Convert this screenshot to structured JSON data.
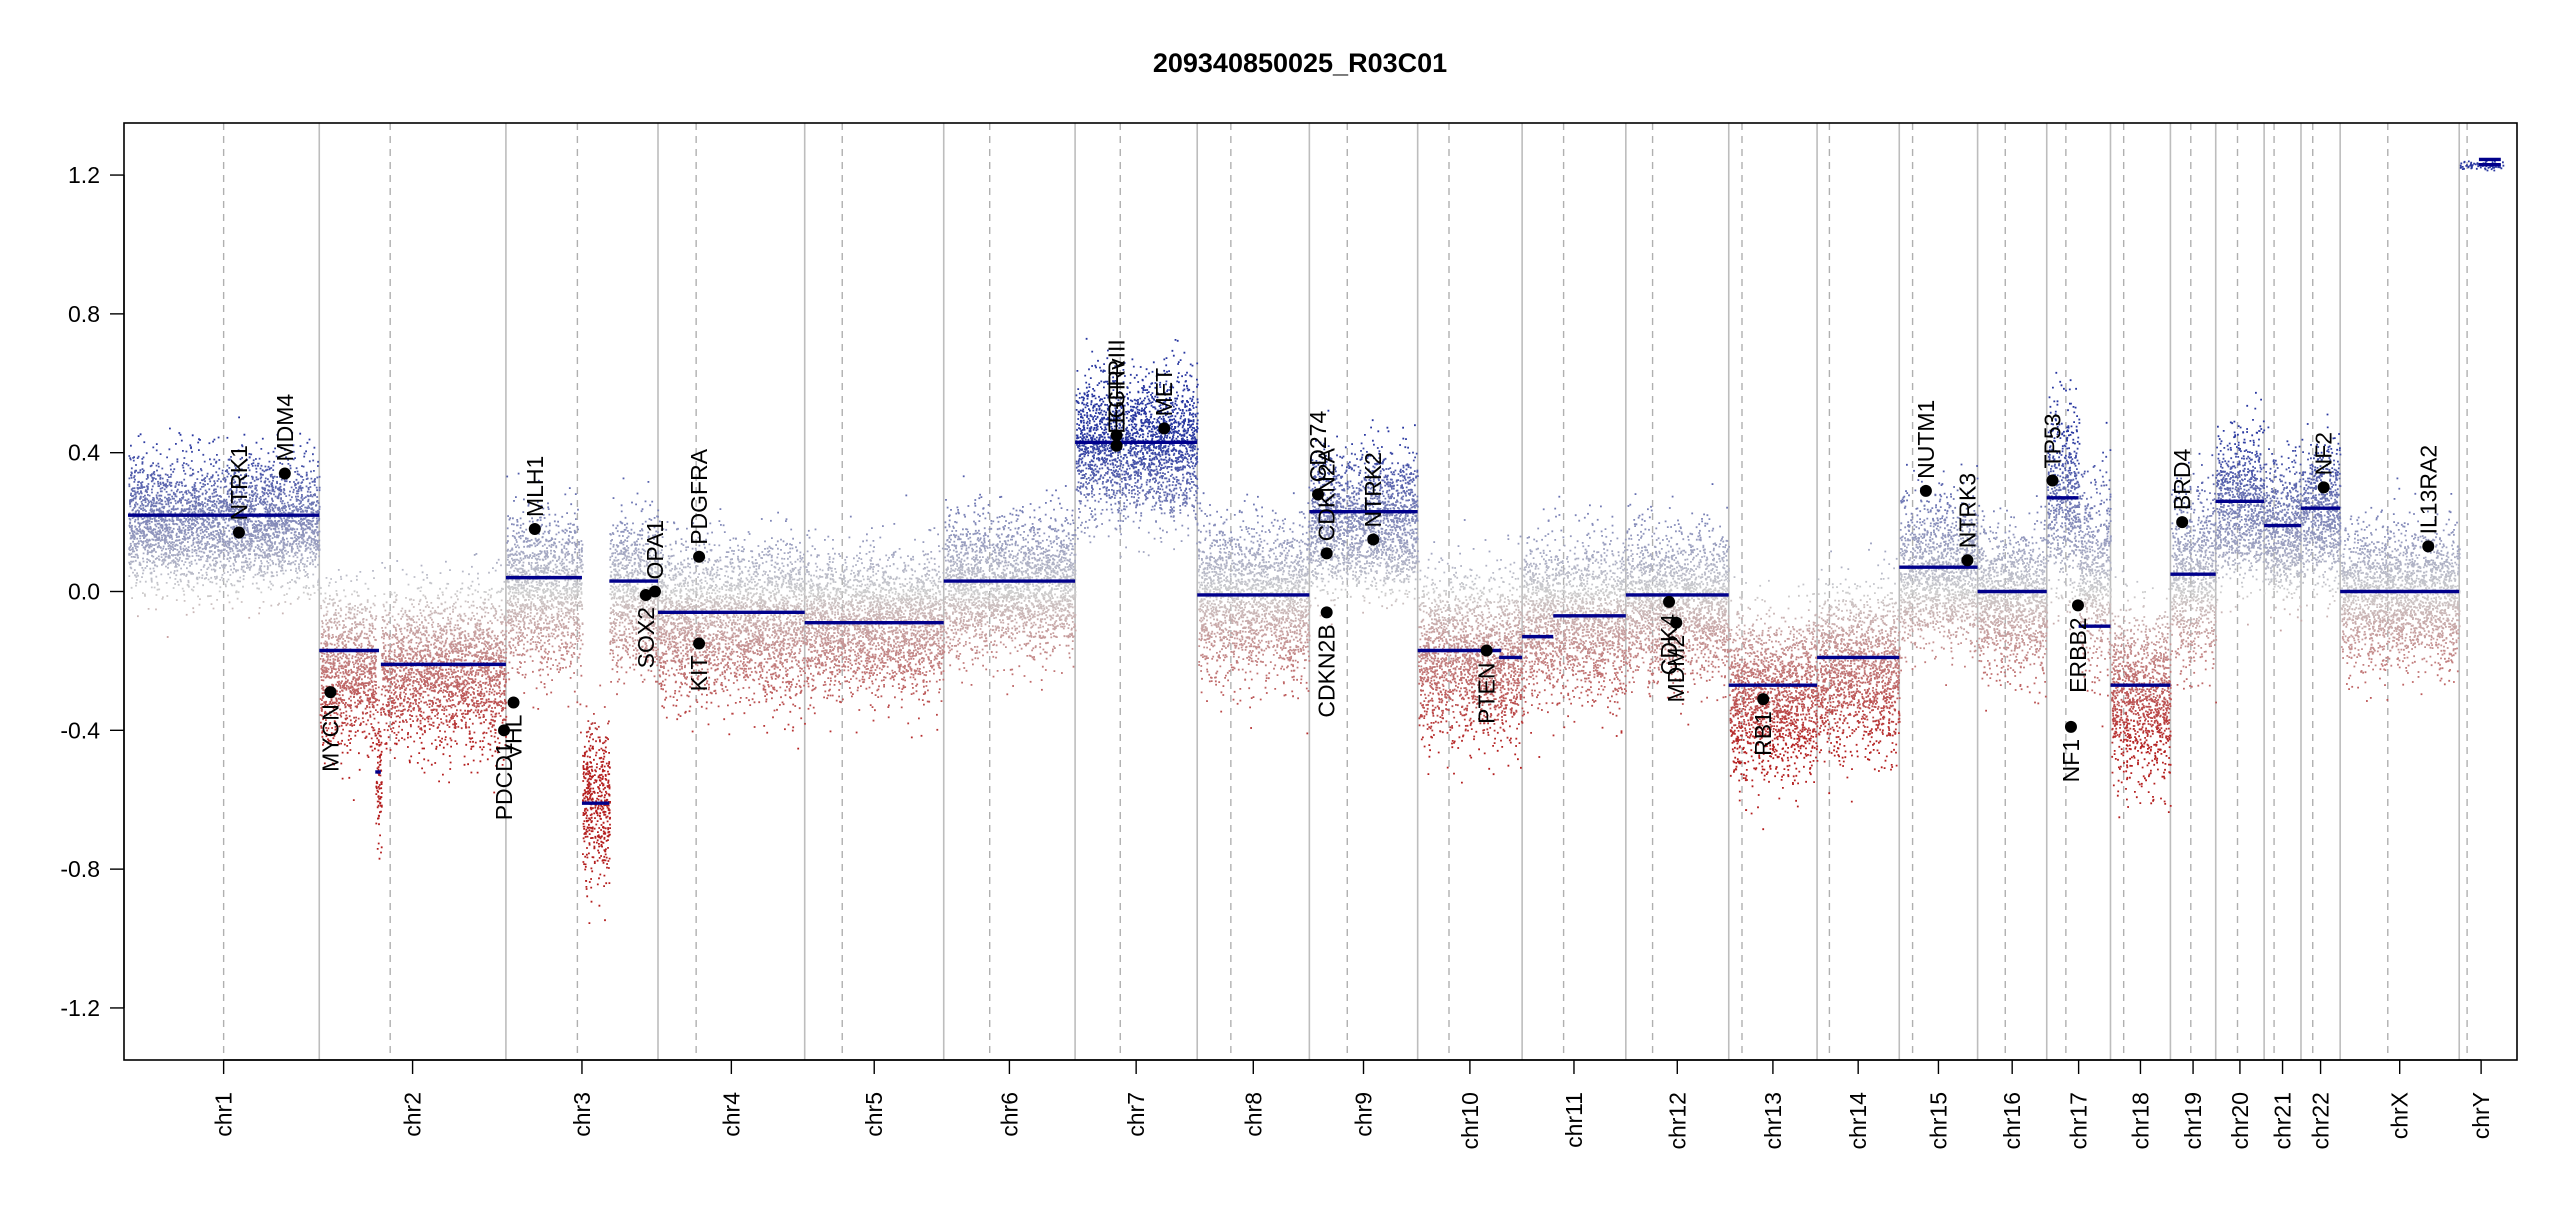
{
  "chart_data": {
    "type": "scatter",
    "title": "209340850025_R03C01",
    "xlabel": "",
    "ylabel": "",
    "ylim": [
      -1.35,
      1.35
    ],
    "yticks": [
      "1.2",
      "0.8",
      "0.4",
      "0.0",
      "-0.4",
      "-0.8",
      "-1.2"
    ],
    "ytick_values": [
      1.2,
      0.8,
      0.4,
      0.0,
      -0.4,
      -0.8,
      -1.2
    ],
    "grid": false,
    "legend": "none",
    "colors": {
      "gain": "#2b3a9b",
      "loss": "#b22222",
      "neutral": "#c8c8c8",
      "segment": "#00008b",
      "gene_point": "#000000",
      "chrom_border": "#bdbdbd",
      "centromere": "#b0b0b0"
    },
    "chromosomes": [
      {
        "name": "chr1",
        "size": 249,
        "centromere": 0.5,
        "segments": [
          {
            "from": 0.0,
            "to": 1.0,
            "value": 0.22
          }
        ],
        "mean": 0.2,
        "spread": 0.13
      },
      {
        "name": "chr2",
        "size": 243,
        "centromere": 0.38,
        "segments": [
          {
            "from": 0.0,
            "to": 0.32,
            "value": -0.17
          },
          {
            "from": 0.3,
            "to": 0.33,
            "value": -0.52
          },
          {
            "from": 0.33,
            "to": 1.0,
            "value": -0.21
          }
        ],
        "mean": -0.22,
        "spread": 0.16
      },
      {
        "name": "chr3",
        "size": 198,
        "centromere": 0.47,
        "segments": [
          {
            "from": 0.0,
            "to": 0.5,
            "value": 0.04
          },
          {
            "from": 0.5,
            "to": 0.68,
            "value": -0.61
          },
          {
            "from": 0.68,
            "to": 1.0,
            "value": 0.03
          }
        ],
        "mean": 0.0,
        "spread": 0.16
      },
      {
        "name": "chr4",
        "size": 191,
        "centromere": 0.26,
        "segments": [
          {
            "from": 0.0,
            "to": 1.0,
            "value": -0.06
          }
        ],
        "mean": -0.08,
        "spread": 0.16
      },
      {
        "name": "chr5",
        "size": 181,
        "centromere": 0.27,
        "segments": [
          {
            "from": 0.0,
            "to": 1.0,
            "value": -0.09
          }
        ],
        "mean": -0.09,
        "spread": 0.14
      },
      {
        "name": "chr6",
        "size": 171,
        "centromere": 0.35,
        "segments": [
          {
            "from": 0.0,
            "to": 1.0,
            "value": 0.03
          }
        ],
        "mean": 0.02,
        "spread": 0.14
      },
      {
        "name": "chr7",
        "size": 159,
        "centromere": 0.37,
        "segments": [
          {
            "from": 0.0,
            "to": 1.0,
            "value": 0.43
          }
        ],
        "mean": 0.42,
        "spread": 0.14
      },
      {
        "name": "chr8",
        "size": 146,
        "centromere": 0.3,
        "segments": [
          {
            "from": 0.0,
            "to": 1.0,
            "value": -0.01
          }
        ],
        "mean": -0.02,
        "spread": 0.16
      },
      {
        "name": "chr9",
        "size": 141,
        "centromere": 0.35,
        "segments": [
          {
            "from": 0.0,
            "to": 1.0,
            "value": 0.23
          }
        ],
        "mean": 0.2,
        "spread": 0.14
      },
      {
        "name": "chr10",
        "size": 136,
        "centromere": 0.3,
        "segments": [
          {
            "from": 0.0,
            "to": 0.8,
            "value": -0.17
          },
          {
            "from": 0.78,
            "to": 1.0,
            "value": -0.19
          }
        ],
        "mean": -0.18,
        "spread": 0.17
      },
      {
        "name": "chr11",
        "size": 135,
        "centromere": 0.4,
        "segments": [
          {
            "from": 0.0,
            "to": 0.3,
            "value": -0.13
          },
          {
            "from": 0.3,
            "to": 1.0,
            "value": -0.07
          }
        ],
        "mean": -0.08,
        "spread": 0.16
      },
      {
        "name": "chr12",
        "size": 134,
        "centromere": 0.26,
        "segments": [
          {
            "from": 0.0,
            "to": 1.0,
            "value": -0.01
          }
        ],
        "mean": -0.03,
        "spread": 0.15
      },
      {
        "name": "chr13",
        "size": 115,
        "centromere": 0.15,
        "segments": [
          {
            "from": 0.0,
            "to": 1.0,
            "value": -0.27
          }
        ],
        "mean": -0.3,
        "spread": 0.17
      },
      {
        "name": "chr14",
        "size": 107,
        "centromere": 0.15,
        "segments": [
          {
            "from": 0.0,
            "to": 1.0,
            "value": -0.19
          }
        ],
        "mean": -0.22,
        "spread": 0.17
      },
      {
        "name": "chr15",
        "size": 102,
        "centromere": 0.17,
        "segments": [
          {
            "from": 0.0,
            "to": 1.0,
            "value": 0.07
          }
        ],
        "mean": 0.06,
        "spread": 0.15
      },
      {
        "name": "chr16",
        "size": 90,
        "centromere": 0.4,
        "segments": [
          {
            "from": 0.0,
            "to": 1.0,
            "value": 0.0
          }
        ],
        "mean": -0.02,
        "spread": 0.15
      },
      {
        "name": "chr17",
        "size": 83,
        "centromere": 0.3,
        "segments": [
          {
            "from": 0.0,
            "to": 0.5,
            "value": 0.27
          },
          {
            "from": 0.5,
            "to": 1.0,
            "value": -0.1
          }
        ],
        "mean": 0.05,
        "spread": 0.2
      },
      {
        "name": "chr18",
        "size": 78,
        "centromere": 0.22,
        "segments": [
          {
            "from": 0.0,
            "to": 1.0,
            "value": -0.27
          }
        ],
        "mean": -0.3,
        "spread": 0.17
      },
      {
        "name": "chr19",
        "size": 59,
        "centromere": 0.45,
        "segments": [
          {
            "from": 0.0,
            "to": 1.0,
            "value": 0.05
          }
        ],
        "mean": 0.05,
        "spread": 0.18
      },
      {
        "name": "chr20",
        "size": 63,
        "centromere": 0.45,
        "segments": [
          {
            "from": 0.0,
            "to": 1.0,
            "value": 0.26
          }
        ],
        "mean": 0.25,
        "spread": 0.15
      },
      {
        "name": "chr21",
        "size": 48,
        "centromere": 0.27,
        "segments": [
          {
            "from": 0.0,
            "to": 1.0,
            "value": 0.19
          }
        ],
        "mean": 0.18,
        "spread": 0.14
      },
      {
        "name": "chr22",
        "size": 51,
        "centromere": 0.3,
        "segments": [
          {
            "from": 0.0,
            "to": 1.0,
            "value": 0.24
          }
        ],
        "mean": 0.22,
        "spread": 0.14
      },
      {
        "name": "chrX",
        "size": 155,
        "centromere": 0.4,
        "segments": [
          {
            "from": 0.0,
            "to": 1.0,
            "value": 0.0
          }
        ],
        "mean": -0.01,
        "spread": 0.14
      },
      {
        "name": "chrY",
        "size": 57,
        "centromere": 0.18,
        "segments": [
          {
            "from": 0.45,
            "to": 0.95,
            "value": 1.23
          },
          {
            "from": 0.45,
            "to": 0.95,
            "value": 1.245
          }
        ],
        "mean": 1.23,
        "spread": 0.01
      }
    ],
    "genes": [
      {
        "name": "NTRK1",
        "chr": "chr1",
        "pos": 0.58,
        "value": 0.17
      },
      {
        "name": "MDM4",
        "chr": "chr1",
        "pos": 0.82,
        "value": 0.34
      },
      {
        "name": "MYCN",
        "chr": "chr2",
        "pos": 0.06,
        "value": -0.29
      },
      {
        "name": "PDCD1",
        "chr": "chr2",
        "pos": 0.99,
        "value": -0.4
      },
      {
        "name": "VHL",
        "chr": "chr3",
        "pos": 0.05,
        "value": -0.32
      },
      {
        "name": "MLH1",
        "chr": "chr3",
        "pos": 0.19,
        "value": 0.18
      },
      {
        "name": "SOX2",
        "chr": "chr3",
        "pos": 0.92,
        "value": -0.01
      },
      {
        "name": "OPA1",
        "chr": "chr3",
        "pos": 0.98,
        "value": 0.0
      },
      {
        "name": "PDGFRA",
        "chr": "chr4",
        "pos": 0.28,
        "value": 0.1
      },
      {
        "name": "KIT",
        "chr": "chr4",
        "pos": 0.28,
        "value": -0.15
      },
      {
        "name": "EGFR",
        "chr": "chr7",
        "pos": 0.34,
        "value": 0.45
      },
      {
        "name": "EGFRvIII",
        "chr": "chr7",
        "pos": 0.34,
        "value": 0.42
      },
      {
        "name": "MET",
        "chr": "chr7",
        "pos": 0.73,
        "value": 0.47
      },
      {
        "name": "CD274",
        "chr": "chr9",
        "pos": 0.08,
        "value": 0.28
      },
      {
        "name": "CDKN2A",
        "chr": "chr9",
        "pos": 0.16,
        "value": 0.11
      },
      {
        "name": "CDKN2B",
        "chr": "chr9",
        "pos": 0.16,
        "value": -0.06
      },
      {
        "name": "NTRK2",
        "chr": "chr9",
        "pos": 0.59,
        "value": 0.15
      },
      {
        "name": "PTEN",
        "chr": "chr10",
        "pos": 0.66,
        "value": -0.17
      },
      {
        "name": "CDK4",
        "chr": "chr12",
        "pos": 0.42,
        "value": -0.03
      },
      {
        "name": "MDM2",
        "chr": "chr12",
        "pos": 0.49,
        "value": -0.09
      },
      {
        "name": "RB1",
        "chr": "chr13",
        "pos": 0.39,
        "value": -0.31
      },
      {
        "name": "NUTM1",
        "chr": "chr15",
        "pos": 0.34,
        "value": 0.29
      },
      {
        "name": "NTRK3",
        "chr": "chr15",
        "pos": 0.87,
        "value": 0.09
      },
      {
        "name": "TP53",
        "chr": "chr17",
        "pos": 0.09,
        "value": 0.32
      },
      {
        "name": "NF1",
        "chr": "chr17",
        "pos": 0.38,
        "value": -0.39
      },
      {
        "name": "ERBB2",
        "chr": "chr17",
        "pos": 0.49,
        "value": -0.04
      },
      {
        "name": "BRD4",
        "chr": "chr19",
        "pos": 0.26,
        "value": 0.2
      },
      {
        "name": "NF2",
        "chr": "chr22",
        "pos": 0.58,
        "value": 0.3
      },
      {
        "name": "IL13RA2",
        "chr": "chrX",
        "pos": 0.74,
        "value": 0.13
      }
    ]
  }
}
